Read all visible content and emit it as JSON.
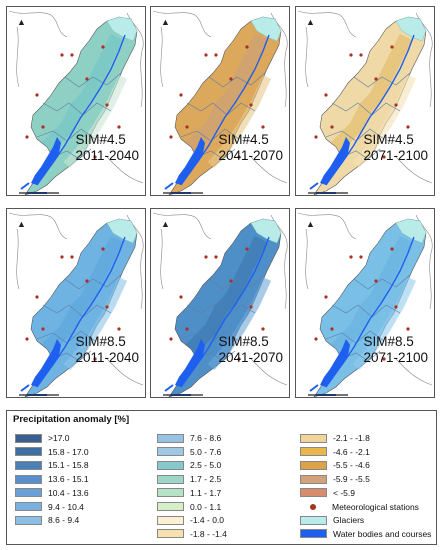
{
  "panels": [
    {
      "scenario": "SIM#4.5",
      "period": "2011-2040",
      "fill": "#8fd0c4",
      "fill2": "#6fc2c7",
      "fill3": "#cbe6d5"
    },
    {
      "scenario": "SIM#4.5",
      "period": "2041-2070",
      "fill": "#dca85c",
      "fill2": "#c8a080",
      "fill3": "#e8c98a"
    },
    {
      "scenario": "SIM#4.5",
      "period": "2071-2100",
      "fill": "#efd9a6",
      "fill2": "#e0b860",
      "fill3": "#f3e2b8"
    },
    {
      "scenario": "SIM#8.5",
      "period": "2011-2040",
      "fill": "#6fb3e3",
      "fill2": "#5aa4dc",
      "fill3": "#8cc4ea"
    },
    {
      "scenario": "SIM#8.5",
      "period": "2041-2070",
      "fill": "#4f8fc8",
      "fill2": "#3a75ad",
      "fill3": "#6aa6d8"
    },
    {
      "scenario": "SIM#8.5",
      "period": "2071-2100",
      "fill": "#79bfe6",
      "fill2": "#67b0e0",
      "fill3": "#93cbee"
    }
  ],
  "legend": {
    "title": "Precipitation anomaly [%]",
    "columns": [
      [
        {
          "label": ">17.0",
          "color": "#3a5f8e"
        },
        {
          "label": "15.8 - 17.0",
          "color": "#3f6ea3"
        },
        {
          "label": "15.1 - 15.8",
          "color": "#4a7fb8"
        },
        {
          "label": "13.6 - 15.1",
          "color": "#5a8fcc"
        },
        {
          "label": "10.4 - 13.6",
          "color": "#6a9fd8"
        },
        {
          "label": "9.4 - 10.4",
          "color": "#7cb0e0"
        },
        {
          "label": "8.6 - 9.4",
          "color": "#8cbee6"
        }
      ],
      [
        {
          "label": "7.6 - 8.6",
          "color": "#98c2e2"
        },
        {
          "label": "5.0 - 7.6",
          "color": "#a0c8e4"
        },
        {
          "label": "2.5 - 5.0",
          "color": "#86c8cc"
        },
        {
          "label": "1.7 - 2.5",
          "color": "#9ed6c8"
        },
        {
          "label": "1.1 - 1.7",
          "color": "#b6e2c6"
        },
        {
          "label": "0.0 - 1.1",
          "color": "#d6efc8"
        },
        {
          "label": "-1.4 - 0.0",
          "color": "#fbf1d2"
        },
        {
          "label": "-1.8 - -1.4",
          "color": "#f5e0ae"
        }
      ],
      [
        {
          "label": "-2.1 - -1.8",
          "color": "#f1d49a"
        },
        {
          "label": "-4.6 - -2.1",
          "color": "#e8b64a"
        },
        {
          "label": "-5.5 - -4.6",
          "color": "#dba24a"
        },
        {
          "label": "-5.9 - -5.5",
          "color": "#d2a27a"
        },
        {
          "label": "< -5.9",
          "color": "#d88c6e"
        },
        {
          "label": "Meteorological stations",
          "color": "#a83220",
          "kind": "dot"
        },
        {
          "label": "Glaciers",
          "color": "#b9ece9"
        },
        {
          "label": "Water bodies and courses",
          "color": "#1e5ff0"
        }
      ]
    ]
  }
}
